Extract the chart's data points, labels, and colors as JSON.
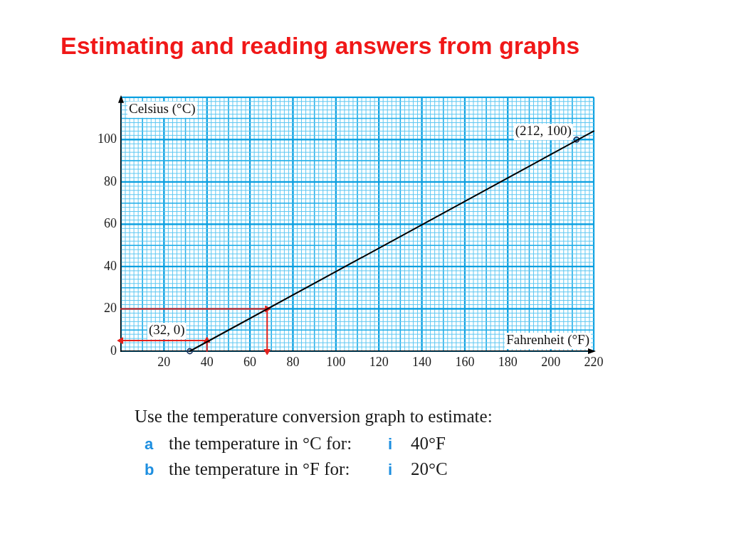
{
  "chart_data": {
    "type": "line",
    "title": "Estimating and reading answers from graphs",
    "xlabel": "Fahrenheit (°F)",
    "ylabel": "Celsius (°C)",
    "xlim": [
      0,
      220
    ],
    "ylim": [
      0,
      120
    ],
    "xticks": [
      20,
      40,
      60,
      80,
      100,
      120,
      140,
      160,
      180,
      200,
      220
    ],
    "yticks": [
      0,
      20,
      40,
      60,
      80,
      100
    ],
    "grid": true,
    "series": [
      {
        "type": "line",
        "color": "#000000",
        "x": [
          32,
          220
        ],
        "values": [
          0,
          104
        ],
        "marker": "none"
      },
      {
        "type": "scatter",
        "color": "#1f3864",
        "x": [
          32,
          212
        ],
        "values": [
          0,
          100
        ],
        "marker": "circle"
      },
      {
        "type": "line",
        "color": "#e3211c",
        "x": [
          0,
          68,
          68
        ],
        "values": [
          20,
          20,
          0
        ],
        "marker": "triangle"
      },
      {
        "type": "line",
        "color": "#e3211c",
        "x": [
          40,
          40,
          0
        ],
        "values": [
          0,
          5,
          5
        ],
        "marker": "triangle"
      }
    ],
    "annotations": [
      {
        "text": "(32, 0)",
        "x": 32,
        "y": 0
      },
      {
        "text": "(212, 100)",
        "x": 212,
        "y": 100
      },
      "Use the temperature conversion graph to estimate:",
      "a",
      "the temperature in °C for:",
      "i",
      "40°F",
      "b",
      "the temperature in °F for:",
      "i",
      "20°C"
    ]
  }
}
